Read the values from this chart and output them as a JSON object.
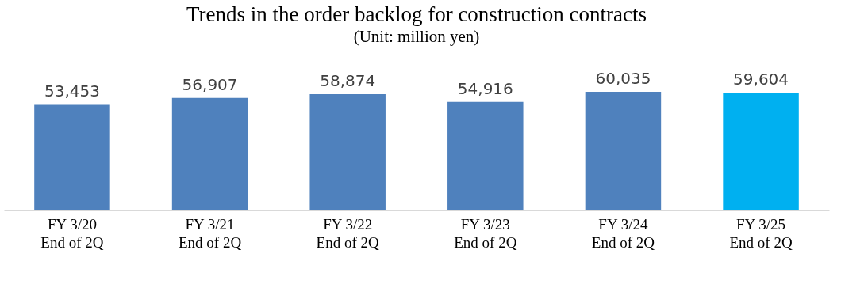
{
  "chart_data": {
    "type": "bar",
    "title": "Trends in the order backlog for construction contracts",
    "subtitle": "(Unit: million yen)",
    "categories": [
      "FY 3/20\nEnd of 2Q",
      "FY 3/21\nEnd of 2Q",
      "FY 3/22\nEnd of 2Q",
      "FY 3/23\nEnd of 2Q",
      "FY 3/24\nEnd of 2Q",
      "FY 3/25\nEnd of 2Q"
    ],
    "values": [
      53453,
      56907,
      58874,
      54916,
      60035,
      59604
    ],
    "value_labels": [
      "53,453",
      "56,907",
      "58,874",
      "54,916",
      "60,035",
      "59,604"
    ],
    "colors": [
      "#4f81bd",
      "#4f81bd",
      "#4f81bd",
      "#4f81bd",
      "#4f81bd",
      "#00b0f0"
    ],
    "tick_labels": "x"
  }
}
